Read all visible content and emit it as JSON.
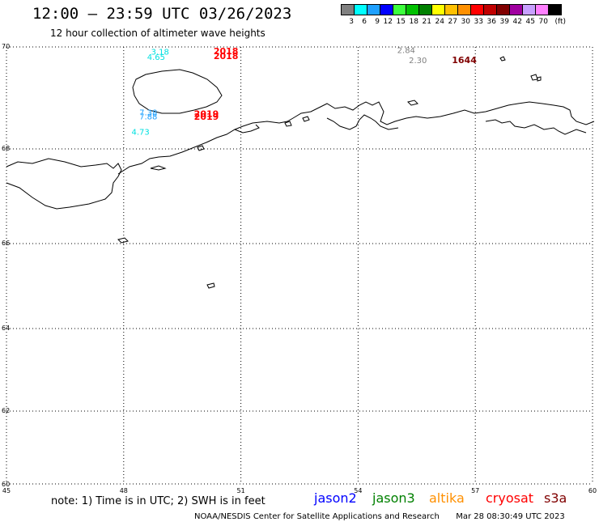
{
  "header": {
    "title": "12:00 – 23:59 UTC 03/26/2023",
    "subtitle": "12 hour collection of altimeter wave heights"
  },
  "scale": {
    "unit": "(ft)",
    "ticks": [
      "3",
      "6",
      "9",
      "12",
      "15",
      "18",
      "21",
      "24",
      "27",
      "30",
      "33",
      "36",
      "39",
      "42",
      "45",
      "70"
    ],
    "colors": [
      "#808080",
      "#00ffff",
      "#1ea0ff",
      "#0000ff",
      "#3cff3c",
      "#00c000",
      "#008000",
      "#ffff00",
      "#ffc000",
      "#ff9000",
      "#ff0000",
      "#c00000",
      "#800000",
      "#a000a0",
      "#c8a0ff",
      "#ff80ff",
      "#000000"
    ]
  },
  "map": {
    "lat_ticks": [
      "70",
      "68",
      "66",
      "64",
      "62",
      "60"
    ],
    "lon_ticks": [
      "45",
      "48",
      "51",
      "54",
      "57",
      "60"
    ],
    "lat_range": [
      60,
      70
    ],
    "lon_range": [
      45,
      60
    ]
  },
  "observations": [
    {
      "swh": "3.18",
      "color": "#00e0e0",
      "lon": 48.7,
      "lat": 69.85
    },
    {
      "swh": "4.65",
      "color": "#00e0e0",
      "lon": 48.6,
      "lat": 69.75
    },
    {
      "swh": "2018",
      "color": "#ff0000",
      "lon": 50.3,
      "lat": 69.86,
      "time": true
    },
    {
      "swh": "2018",
      "color": "#ff0000",
      "lon": 50.3,
      "lat": 69.76,
      "time": true
    },
    {
      "swh": "7.38",
      "color": "#1ea0ff",
      "lon": 48.4,
      "lat": 68.66
    },
    {
      "swh": "7.88",
      "color": "#1ea0ff",
      "lon": 48.4,
      "lat": 68.58
    },
    {
      "swh": "2019",
      "color": "#ff0000",
      "lon": 49.8,
      "lat": 68.63,
      "time": true
    },
    {
      "swh": "2019",
      "color": "#ff0000",
      "lon": 49.8,
      "lat": 68.57,
      "time": true
    },
    {
      "swh": "4.73",
      "color": "#00e0e0",
      "lon": 48.2,
      "lat": 68.28
    },
    {
      "swh": "2.84",
      "color": "#808080",
      "lon": 55.0,
      "lat": 69.88
    },
    {
      "swh": "2.30",
      "color": "#808080",
      "lon": 55.3,
      "lat": 69.68
    },
    {
      "swh": "1644",
      "color": "#800000",
      "lon": 56.4,
      "lat": 69.68,
      "time": true
    }
  ],
  "note": "note: 1) Time is in UTC; 2) SWH is in feet",
  "legend": [
    {
      "label": "jason2",
      "color": "#0000ff"
    },
    {
      "label": "jason3",
      "color": "#008000"
    },
    {
      "label": "altika",
      "color": "#ff9000"
    },
    {
      "label": "cryosat",
      "color": "#ff0000"
    },
    {
      "label": "s3a",
      "color": "#800000"
    }
  ],
  "credit": {
    "source": "NOAA/NESDIS Center for Satellite Applications and Research",
    "timestamp": "Mar 28 08:30:49 UTC 2023"
  }
}
